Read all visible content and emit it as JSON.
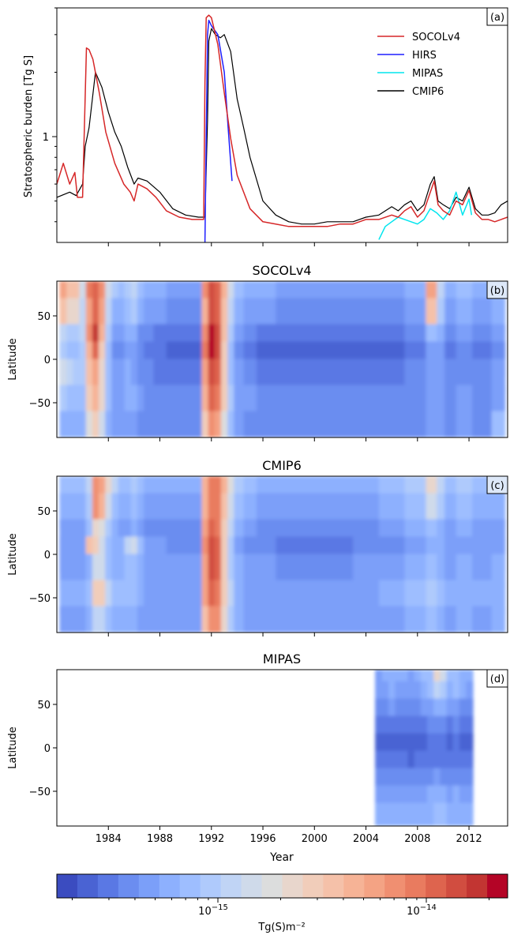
{
  "figure": {
    "panels": [
      {
        "id": "a",
        "tag": "(a)",
        "title": ""
      },
      {
        "id": "b",
        "tag": "(b)",
        "title": "SOCOLv4"
      },
      {
        "id": "c",
        "tag": "(c)",
        "title": "CMIP6"
      },
      {
        "id": "d",
        "tag": "(d)",
        "title": "MIPAS"
      }
    ],
    "x_label": "Year",
    "x_ticks": [
      "1984",
      "1988",
      "1992",
      "1996",
      "2000",
      "2004",
      "2008",
      "2012"
    ],
    "lat_label": "Latitude",
    "lat_ticks": [
      "50",
      "0",
      "−50"
    ],
    "burden_label": "Stratospheric burden [Tg S]",
    "burden_tick": "1",
    "colorbar_label": "Tg(S)m⁻²",
    "colorbar_ticks": [
      {
        "base": "10",
        "exp": "−15"
      },
      {
        "base": "10",
        "exp": "−14"
      }
    ],
    "colors": {
      "SOCOLv4": "#d62728",
      "HIRS": "#1f1fff",
      "MIPAS": "#00e5ee",
      "CMIP6": "#000000",
      "cmap": [
        "#3b4cc0",
        "#4a63d3",
        "#5a78e4",
        "#6b8df0",
        "#7b9ff9",
        "#8db0fe",
        "#9ebeff",
        "#afcafc",
        "#c0d4f5",
        "#cfdaea",
        "#dcdddd",
        "#e8d6cc",
        "#f1cdba",
        "#f5c1a9",
        "#f6b396",
        "#f4a384",
        "#f08f71",
        "#e97b5f",
        "#de644e",
        "#d14d40",
        "#c23532",
        "#b40426"
      ]
    }
  },
  "chart_data": [
    {
      "panel": "a",
      "type": "line",
      "ylabel": "Stratospheric burden [Tg S]",
      "xlim": [
        1980.0,
        2015.0
      ],
      "ylim": [
        0.32,
        4.0
      ],
      "yscale": "log",
      "legend_loc": "top-right",
      "series": [
        {
          "name": "SOCOLv4",
          "x": [
            1980.0,
            1980.5,
            1981.0,
            1981.4,
            1981.6,
            1982.0,
            1982.3,
            1982.5,
            1982.8,
            1983.3,
            1983.8,
            1984.5,
            1985.2,
            1985.7,
            1986.0,
            1986.3,
            1987.0,
            1987.7,
            1988.5,
            1989.5,
            1990.5,
            1991.4,
            1991.5,
            1991.6,
            1991.8,
            1992.0,
            1992.5,
            1993.0,
            1993.5,
            1994.0,
            1995.0,
            1996.0,
            1997.0,
            1998.0,
            1999.0,
            2000.0,
            2001.0,
            2002.0,
            2003.0,
            2004.0,
            2005.0,
            2006.0,
            2006.5,
            2007.0,
            2007.5,
            2008.0,
            2008.5,
            2009.0,
            2009.3,
            2009.6,
            2010.0,
            2010.5,
            2011.0,
            2011.5,
            2012.0,
            2012.5,
            2013.0,
            2013.5,
            2014.0,
            2014.5,
            2015.0
          ],
          "y": [
            0.6,
            0.75,
            0.6,
            0.68,
            0.52,
            0.52,
            2.6,
            2.55,
            2.3,
            1.6,
            1.05,
            0.75,
            0.6,
            0.55,
            0.5,
            0.6,
            0.57,
            0.52,
            0.45,
            0.42,
            0.41,
            0.41,
            1.8,
            3.6,
            3.7,
            3.6,
            2.7,
            1.6,
            0.98,
            0.66,
            0.46,
            0.4,
            0.39,
            0.38,
            0.38,
            0.38,
            0.38,
            0.39,
            0.39,
            0.41,
            0.41,
            0.43,
            0.42,
            0.45,
            0.47,
            0.42,
            0.45,
            0.55,
            0.62,
            0.48,
            0.45,
            0.43,
            0.5,
            0.48,
            0.56,
            0.44,
            0.41,
            0.41,
            0.4,
            0.41,
            0.42
          ]
        },
        {
          "name": "HIRS",
          "x": [
            1991.5,
            1991.6,
            1991.7,
            1991.8,
            1992.0,
            1992.5,
            1993.0,
            1993.3,
            1993.6
          ],
          "y": [
            0.32,
            1.0,
            3.0,
            3.5,
            3.3,
            3.0,
            2.0,
            1.1,
            0.62
          ]
        },
        {
          "name": "MIPAS",
          "x": [
            2005.0,
            2005.5,
            2006.0,
            2006.5,
            2007.0,
            2007.5,
            2008.0,
            2008.5,
            2009.0,
            2009.5,
            2010.0,
            2010.5,
            2011.0,
            2011.5,
            2012.0,
            2012.2
          ],
          "y": [
            0.33,
            0.38,
            0.4,
            0.42,
            0.41,
            0.4,
            0.39,
            0.41,
            0.46,
            0.44,
            0.41,
            0.45,
            0.55,
            0.43,
            0.51,
            0.43
          ]
        },
        {
          "name": "CMIP6",
          "x": [
            1980.0,
            1981.0,
            1981.5,
            1982.0,
            1982.2,
            1982.5,
            1983.0,
            1983.5,
            1984.0,
            1984.5,
            1985.0,
            1985.5,
            1986.0,
            1986.3,
            1987.0,
            1988.0,
            1989.0,
            1990.0,
            1991.0,
            1991.5,
            1991.7,
            1991.8,
            1992.0,
            1992.3,
            1992.7,
            1993.0,
            1993.5,
            1994.0,
            1994.5,
            1995.0,
            1996.0,
            1997.0,
            1998.0,
            1999.0,
            2000.0,
            2001.0,
            2002.0,
            2003.0,
            2004.0,
            2005.0,
            2006.0,
            2006.5,
            2007.0,
            2007.5,
            2008.0,
            2008.5,
            2009.0,
            2009.3,
            2009.6,
            2010.0,
            2010.5,
            2011.0,
            2011.5,
            2012.0,
            2012.5,
            2013.0,
            2013.5,
            2014.0,
            2014.5,
            2015.0
          ],
          "y": [
            0.52,
            0.55,
            0.53,
            0.6,
            0.9,
            1.1,
            2.0,
            1.7,
            1.3,
            1.05,
            0.9,
            0.72,
            0.6,
            0.64,
            0.62,
            0.55,
            0.46,
            0.43,
            0.42,
            0.42,
            1.2,
            2.8,
            3.2,
            3.0,
            2.9,
            3.0,
            2.5,
            1.5,
            1.1,
            0.8,
            0.5,
            0.43,
            0.4,
            0.39,
            0.39,
            0.4,
            0.4,
            0.4,
            0.42,
            0.43,
            0.47,
            0.45,
            0.48,
            0.5,
            0.45,
            0.48,
            0.6,
            0.65,
            0.5,
            0.48,
            0.46,
            0.52,
            0.5,
            0.58,
            0.46,
            0.43,
            0.43,
            0.44,
            0.48,
            0.5
          ]
        }
      ]
    },
    {
      "panel": "b",
      "type": "heatmap",
      "title": "SOCOLv4",
      "x": [
        1980.5,
        1981.0,
        1981.5,
        1982.0,
        1982.5,
        1983.0,
        1983.5,
        1984.0,
        1984.5,
        1985.0,
        1985.5,
        1986.0,
        1986.5,
        1987.0,
        1988.0,
        1989.0,
        1990.0,
        1991.0,
        1991.5,
        1992.0,
        1992.5,
        1993.0,
        1993.5,
        1994.0,
        1995.0,
        1996.0,
        1998.0,
        2000.0,
        2002.0,
        2004.0,
        2006.0,
        2008.0,
        2009.3,
        2009.7,
        2010.5,
        2011.5,
        2013.0,
        2014.5
      ],
      "lat": [
        80,
        50,
        20,
        0,
        -20,
        -50,
        -80
      ],
      "level_index": [
        [
          15,
          13,
          13,
          9,
          17,
          18,
          16,
          9,
          7,
          6,
          7,
          8,
          6,
          5,
          5,
          4,
          4,
          4,
          16,
          19,
          18,
          14,
          9,
          6,
          5,
          5,
          4,
          4,
          4,
          4,
          4,
          5,
          15,
          8,
          5,
          6,
          5,
          6
        ],
        [
          13,
          11,
          11,
          8,
          15,
          18,
          15,
          8,
          5,
          5,
          6,
          7,
          5,
          4,
          4,
          3,
          3,
          3,
          14,
          19,
          18,
          13,
          8,
          5,
          4,
          4,
          3,
          3,
          3,
          3,
          3,
          4,
          13,
          7,
          4,
          5,
          4,
          5
        ],
        [
          8,
          7,
          7,
          8,
          16,
          20,
          14,
          7,
          4,
          4,
          5,
          5,
          3,
          3,
          2,
          2,
          2,
          2,
          16,
          21,
          19,
          13,
          7,
          4,
          3,
          2,
          2,
          2,
          2,
          2,
          2,
          3,
          6,
          5,
          3,
          4,
          3,
          4
        ],
        [
          7,
          6,
          6,
          7,
          14,
          18,
          12,
          6,
          3,
          3,
          4,
          4,
          3,
          2,
          2,
          1,
          1,
          1,
          17,
          21,
          19,
          12,
          6,
          3,
          2,
          1,
          1,
          1,
          1,
          1,
          1,
          2,
          4,
          4,
          2,
          3,
          2,
          3
        ],
        [
          9,
          8,
          7,
          7,
          13,
          15,
          11,
          6,
          4,
          4,
          5,
          4,
          3,
          3,
          2,
          2,
          2,
          2,
          15,
          19,
          18,
          12,
          6,
          4,
          3,
          2,
          2,
          2,
          2,
          2,
          2,
          3,
          4,
          4,
          3,
          3,
          3,
          4
        ],
        [
          7,
          6,
          6,
          6,
          12,
          14,
          11,
          6,
          4,
          4,
          5,
          5,
          4,
          3,
          3,
          3,
          3,
          3,
          14,
          18,
          17,
          12,
          7,
          4,
          4,
          3,
          3,
          3,
          3,
          3,
          3,
          3,
          4,
          4,
          3,
          4,
          3,
          4
        ],
        [
          5,
          5,
          5,
          5,
          10,
          12,
          9,
          5,
          4,
          4,
          4,
          4,
          3,
          3,
          3,
          3,
          3,
          3,
          12,
          16,
          15,
          10,
          6,
          4,
          3,
          3,
          3,
          3,
          3,
          3,
          3,
          3,
          4,
          4,
          3,
          4,
          3,
          6
        ]
      ]
    },
    {
      "panel": "c",
      "type": "heatmap",
      "title": "CMIP6",
      "x": [
        1980.5,
        1981.0,
        1981.5,
        1982.0,
        1982.5,
        1983.0,
        1983.5,
        1984.0,
        1984.5,
        1985.0,
        1985.5,
        1986.0,
        1986.5,
        1987.0,
        1988.0,
        1989.0,
        1990.0,
        1991.0,
        1991.5,
        1992.0,
        1992.5,
        1993.0,
        1993.5,
        1994.0,
        1995.0,
        1996.0,
        1998.0,
        2000.0,
        2002.0,
        2004.0,
        2006.0,
        2008.0,
        2009.3,
        2009.7,
        2010.5,
        2011.5,
        2013.0,
        2014.5
      ],
      "lat": [
        80,
        50,
        20,
        0,
        -20,
        -50,
        -80
      ],
      "level_index": [
        [
          6,
          6,
          6,
          6,
          8,
          16,
          15,
          11,
          8,
          6,
          6,
          7,
          6,
          5,
          5,
          5,
          5,
          5,
          14,
          17,
          17,
          14,
          10,
          7,
          6,
          5,
          5,
          5,
          5,
          5,
          6,
          7,
          11,
          8,
          6,
          7,
          6,
          6
        ],
        [
          5,
          5,
          5,
          5,
          7,
          16,
          14,
          9,
          6,
          5,
          5,
          6,
          5,
          4,
          4,
          4,
          4,
          4,
          14,
          17,
          17,
          13,
          9,
          6,
          5,
          4,
          4,
          4,
          4,
          4,
          5,
          6,
          9,
          7,
          5,
          6,
          5,
          5
        ],
        [
          4,
          4,
          4,
          4,
          6,
          11,
          10,
          7,
          5,
          4,
          4,
          5,
          4,
          3,
          3,
          3,
          3,
          3,
          15,
          18,
          17,
          12,
          8,
          5,
          4,
          3,
          3,
          3,
          3,
          3,
          4,
          5,
          6,
          5,
          4,
          5,
          4,
          4
        ],
        [
          4,
          4,
          4,
          4,
          13,
          12,
          9,
          6,
          5,
          5,
          8,
          9,
          6,
          4,
          4,
          3,
          3,
          3,
          16,
          19,
          18,
          12,
          7,
          4,
          3,
          3,
          2,
          2,
          2,
          3,
          3,
          4,
          5,
          5,
          4,
          4,
          4,
          4
        ],
        [
          4,
          4,
          4,
          4,
          5,
          9,
          9,
          6,
          5,
          5,
          6,
          6,
          5,
          4,
          4,
          4,
          4,
          4,
          15,
          19,
          18,
          12,
          7,
          5,
          4,
          4,
          3,
          3,
          3,
          4,
          4,
          5,
          6,
          5,
          4,
          5,
          4,
          5
        ],
        [
          5,
          5,
          5,
          5,
          6,
          12,
          12,
          8,
          6,
          6,
          6,
          6,
          5,
          4,
          4,
          4,
          4,
          4,
          15,
          18,
          17,
          12,
          8,
          5,
          4,
          4,
          4,
          4,
          4,
          4,
          5,
          6,
          7,
          6,
          5,
          5,
          5,
          5
        ],
        [
          4,
          4,
          4,
          4,
          5,
          8,
          8,
          6,
          5,
          5,
          5,
          5,
          4,
          4,
          4,
          4,
          4,
          4,
          13,
          16,
          16,
          11,
          7,
          5,
          4,
          4,
          4,
          4,
          4,
          4,
          4,
          5,
          6,
          5,
          4,
          5,
          4,
          5
        ]
      ]
    },
    {
      "panel": "d",
      "type": "heatmap",
      "title": "MIPAS",
      "x": [
        2005.0,
        2005.5,
        2006.0,
        2006.5,
        2007.0,
        2007.5,
        2008.0,
        2008.5,
        2009.0,
        2009.5,
        2010.0,
        2010.5,
        2011.0,
        2011.5,
        2012.0
      ],
      "lat": [
        80,
        60,
        40,
        20,
        0,
        -20,
        -40,
        -60,
        -80
      ],
      "level_index": [
        [
          4,
          5,
          5,
          5,
          5,
          4,
          5,
          6,
          6,
          11,
          9,
          6,
          6,
          5,
          5
        ],
        [
          4,
          4,
          5,
          4,
          4,
          4,
          4,
          5,
          6,
          8,
          7,
          5,
          6,
          5,
          4
        ],
        [
          3,
          3,
          4,
          3,
          3,
          3,
          3,
          4,
          4,
          5,
          5,
          4,
          4,
          3,
          3
        ],
        [
          2,
          2,
          2,
          2,
          2,
          2,
          2,
          2,
          3,
          3,
          3,
          2,
          3,
          2,
          2
        ],
        [
          1,
          1,
          1,
          1,
          1,
          1,
          1,
          1,
          2,
          2,
          2,
          1,
          2,
          1,
          1
        ],
        [
          2,
          2,
          2,
          2,
          2,
          1,
          2,
          2,
          2,
          2,
          2,
          2,
          2,
          2,
          2
        ],
        [
          3,
          3,
          3,
          3,
          3,
          3,
          3,
          3,
          3,
          4,
          3,
          3,
          3,
          3,
          3
        ],
        [
          4,
          4,
          4,
          4,
          4,
          4,
          4,
          4,
          5,
          5,
          5,
          4,
          5,
          4,
          4
        ],
        [
          5,
          5,
          5,
          5,
          5,
          5,
          5,
          5,
          5,
          6,
          6,
          5,
          5,
          5,
          5
        ]
      ]
    }
  ]
}
